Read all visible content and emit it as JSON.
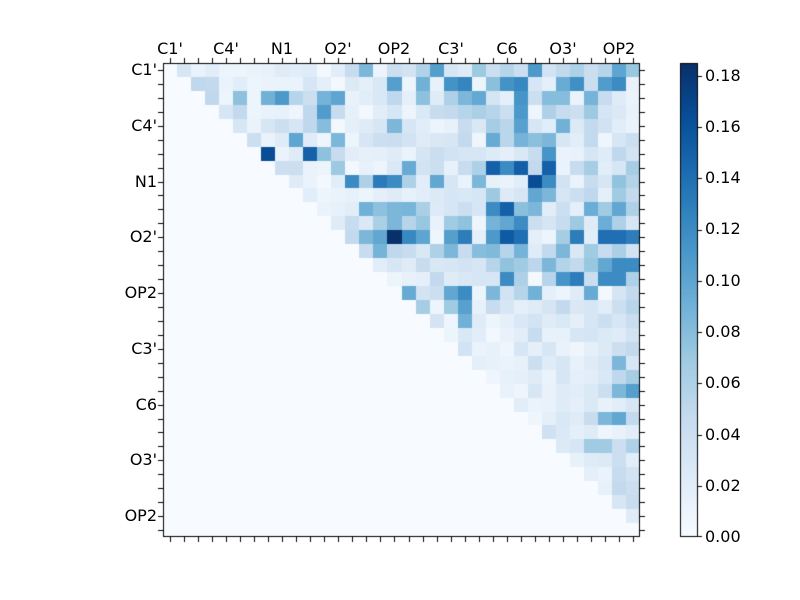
{
  "figure": {
    "background": "#ffffff"
  },
  "chart_data": {
    "type": "heatmap",
    "title": "",
    "xlabel": "",
    "ylabel": "",
    "colormap": "Blues",
    "vmin": 0.0,
    "vmax": 0.185,
    "grid_size": 34,
    "grid": "off",
    "shape": "upper-triangular",
    "tick_label_every_cells": 4,
    "x_ticklabels": [
      "C1'",
      "C4'",
      "N1",
      "O2'",
      "OP2",
      "C3'",
      "C6",
      "O3'",
      "OP2"
    ],
    "y_ticklabels": [
      "C1'",
      "C4'",
      "N1",
      "O2'",
      "OP2",
      "C3'",
      "C6",
      "O3'",
      "OP2"
    ],
    "colorbar": {
      "position": "right",
      "ticklabels": [
        "0.00",
        "0.02",
        "0.04",
        "0.06",
        "0.08",
        "0.10",
        "0.12",
        "0.14",
        "0.16",
        "0.18"
      ],
      "tick_values": [
        0.0,
        0.02,
        0.04,
        0.06,
        0.08,
        0.1,
        0.12,
        0.14,
        0.16,
        0.18
      ]
    },
    "colormap_anchors": [
      {
        "t": 0.0,
        "color": "#f7fbff"
      },
      {
        "t": 0.125,
        "color": "#deebf7"
      },
      {
        "t": 0.25,
        "color": "#c6dbef"
      },
      {
        "t": 0.375,
        "color": "#9ecae1"
      },
      {
        "t": 0.5,
        "color": "#6baed6"
      },
      {
        "t": 0.625,
        "color": "#4292c6"
      },
      {
        "t": 0.75,
        "color": "#2171b5"
      },
      {
        "t": 0.875,
        "color": "#08519c"
      },
      {
        "t": 1.0,
        "color": "#08306b"
      }
    ],
    "matrix": [
      [
        0,
        0.03,
        0.012,
        0.02,
        0.01,
        0.01,
        0.012,
        0.015,
        0.022,
        0.02,
        0.022,
        0.004,
        0.02,
        0.045,
        0.085,
        0.01,
        0.04,
        0.035,
        0.058,
        0.105,
        0.03,
        0.022,
        0.07,
        0.04,
        0.055,
        0.04,
        0.11,
        0.035,
        0.048,
        0.06,
        0.042,
        0.055,
        0.1,
        0.072
      ],
      [
        0,
        0,
        0.05,
        0.048,
        0.012,
        0.02,
        0.01,
        0.012,
        0.012,
        0.012,
        0.03,
        0.018,
        0.005,
        0.025,
        0.018,
        0.028,
        0.105,
        0.01,
        0.09,
        0.015,
        0.115,
        0.125,
        0.01,
        0.078,
        0.115,
        0.123,
        0.03,
        0.018,
        0.094,
        0.117,
        0.042,
        0.107,
        0.12,
        0.013
      ],
      [
        0,
        0,
        0,
        0.05,
        0.01,
        0.077,
        0.01,
        0.09,
        0.11,
        0.055,
        0.04,
        0.088,
        0.1,
        0.013,
        0.02,
        0.027,
        0.05,
        0.018,
        0.077,
        0.022,
        0.06,
        0.085,
        0.097,
        0.032,
        0.017,
        0.113,
        0.04,
        0.08,
        0.08,
        0.012,
        0.088,
        0.045,
        0.022,
        0.012
      ],
      [
        0,
        0,
        0,
        0,
        0.03,
        0.048,
        0.01,
        0.013,
        0.015,
        0.008,
        0.05,
        0.107,
        0.045,
        0.016,
        0.005,
        0.02,
        0.03,
        0.01,
        0.026,
        0.045,
        0.048,
        0.055,
        0.062,
        0.055,
        0.04,
        0.11,
        0.008,
        0.06,
        0.045,
        0.04,
        0.07,
        0.032,
        0.026,
        0.013
      ],
      [
        0,
        0,
        0,
        0,
        0,
        0.03,
        0.012,
        0.03,
        0.04,
        0.03,
        0.05,
        0.08,
        0.005,
        0.018,
        0.022,
        0.03,
        0.085,
        0.03,
        0.02,
        0.01,
        0.015,
        0.045,
        0.027,
        0.065,
        0.053,
        0.103,
        0.03,
        0.02,
        0.09,
        0.025,
        0.048,
        0.036,
        0.02,
        0.012
      ],
      [
        0,
        0,
        0,
        0,
        0,
        0,
        0.04,
        0.012,
        0.022,
        0.1,
        0.022,
        0.008,
        0.085,
        0.01,
        0.03,
        0.04,
        0.042,
        0.035,
        0.022,
        0.027,
        0.03,
        0.048,
        0.008,
        0.095,
        0.053,
        0.088,
        0.078,
        0.085,
        0.03,
        0.02,
        0.048,
        0.008,
        0.03,
        0.04
      ],
      [
        0,
        0,
        0,
        0,
        0,
        0,
        0,
        0.165,
        0.012,
        0.022,
        0.15,
        0.077,
        0.045,
        0.02,
        0.016,
        0.018,
        0.022,
        0.012,
        0.032,
        0.042,
        0.035,
        0.03,
        0.03,
        0.023,
        0.017,
        0.027,
        0.045,
        0.113,
        0.012,
        0.013,
        0.03,
        0.022,
        0.05,
        0.035
      ],
      [
        0,
        0,
        0,
        0,
        0,
        0,
        0,
        0,
        0.04,
        0.04,
        0.012,
        0.01,
        0.07,
        0.004,
        0.015,
        0.01,
        0.026,
        0.095,
        0.035,
        0.04,
        0.015,
        0.045,
        0.06,
        0.15,
        0.12,
        0.152,
        0.048,
        0.15,
        0.012,
        0.045,
        0.065,
        0.02,
        0.03,
        0.065
      ],
      [
        0,
        0,
        0,
        0,
        0,
        0,
        0,
        0,
        0,
        0.022,
        0.012,
        0.004,
        0.02,
        0.12,
        0.06,
        0.132,
        0.12,
        0.06,
        0.02,
        0.098,
        0.03,
        0.012,
        0.085,
        0.015,
        0.012,
        0.02,
        0.165,
        0.12,
        0.035,
        0.012,
        0.045,
        0.03,
        0.075,
        0.057
      ],
      [
        0,
        0,
        0,
        0,
        0,
        0,
        0,
        0,
        0,
        0,
        0.02,
        0.01,
        0.012,
        0.015,
        0.01,
        0.018,
        0.022,
        0.015,
        0.02,
        0.025,
        0.03,
        0.028,
        0.03,
        0.07,
        0.023,
        0.03,
        0.098,
        0.085,
        0.03,
        0.04,
        0.05,
        0.018,
        0.068,
        0.048
      ],
      [
        0,
        0,
        0,
        0,
        0,
        0,
        0,
        0,
        0,
        0,
        0,
        0.012,
        0.015,
        0.02,
        0.09,
        0.077,
        0.085,
        0.087,
        0.062,
        0.024,
        0.03,
        0.04,
        0.03,
        0.12,
        0.15,
        0.078,
        0.085,
        0.02,
        0.04,
        0.018,
        0.093,
        0.068,
        0.098,
        0.06
      ],
      [
        0,
        0,
        0,
        0,
        0,
        0,
        0,
        0,
        0,
        0,
        0,
        0,
        0.022,
        0.045,
        0.026,
        0.062,
        0.085,
        0.055,
        0.072,
        0.013,
        0.068,
        0.076,
        0.008,
        0.088,
        0.098,
        0.12,
        0.04,
        0.032,
        0.045,
        0.07,
        0.022,
        0.093,
        0.06,
        0.03
      ],
      [
        0,
        0,
        0,
        0,
        0,
        0,
        0,
        0,
        0,
        0,
        0,
        0,
        0,
        0.048,
        0.085,
        0.098,
        0.185,
        0.122,
        0.1,
        0.008,
        0.105,
        0.13,
        0.018,
        0.11,
        0.155,
        0.14,
        0.018,
        0.01,
        0.065,
        0.13,
        0.02,
        0.14,
        0.14,
        0.13
      ],
      [
        0,
        0,
        0,
        0,
        0,
        0,
        0,
        0,
        0,
        0,
        0,
        0,
        0,
        0,
        0.045,
        0.088,
        0.05,
        0.045,
        0.028,
        0.06,
        0.085,
        0.045,
        0.08,
        0.083,
        0.055,
        0.088,
        0.022,
        0.048,
        0.085,
        0.027,
        0.068,
        0.045,
        0.062,
        0.035
      ],
      [
        0,
        0,
        0,
        0,
        0,
        0,
        0,
        0,
        0,
        0,
        0,
        0,
        0,
        0,
        0,
        0.02,
        0.03,
        0.022,
        0.045,
        0.028,
        0.03,
        0.035,
        0.03,
        0.055,
        0.075,
        0.068,
        0.052,
        0.085,
        0.057,
        0.048,
        0.072,
        0.098,
        0.12,
        0.12
      ],
      [
        0,
        0,
        0,
        0,
        0,
        0,
        0,
        0,
        0,
        0,
        0,
        0,
        0,
        0,
        0,
        0,
        0.01,
        0.015,
        0.018,
        0.048,
        0.022,
        0.028,
        0.03,
        0.03,
        0.12,
        0.06,
        0.004,
        0.055,
        0.113,
        0.13,
        0.042,
        0.12,
        0.12,
        0.06
      ],
      [
        0,
        0,
        0,
        0,
        0,
        0,
        0,
        0,
        0,
        0,
        0,
        0,
        0,
        0,
        0,
        0,
        0,
        0.095,
        0.035,
        0.04,
        0.098,
        0.12,
        0.01,
        0.085,
        0.035,
        0.055,
        0.09,
        0.017,
        0.01,
        0.022,
        0.095,
        0.005,
        0.032,
        0.048
      ],
      [
        0,
        0,
        0,
        0,
        0,
        0,
        0,
        0,
        0,
        0,
        0,
        0,
        0,
        0,
        0,
        0,
        0,
        0,
        0.065,
        0.01,
        0.068,
        0.103,
        0.015,
        0.045,
        0.03,
        0.018,
        0.022,
        0.032,
        0.048,
        0.027,
        0.03,
        0.02,
        0.04,
        0.055
      ],
      [
        0,
        0,
        0,
        0,
        0,
        0,
        0,
        0,
        0,
        0,
        0,
        0,
        0,
        0,
        0,
        0,
        0,
        0,
        0,
        0.033,
        0.008,
        0.09,
        0.022,
        0.01,
        0.018,
        0.027,
        0.035,
        0.022,
        0.028,
        0.018,
        0.03,
        0.04,
        0.03,
        0.043
      ],
      [
        0,
        0,
        0,
        0,
        0,
        0,
        0,
        0,
        0,
        0,
        0,
        0,
        0,
        0,
        0,
        0,
        0,
        0,
        0,
        0,
        0.01,
        0.028,
        0.02,
        0.005,
        0.013,
        0.02,
        0.045,
        0.015,
        0.015,
        0.03,
        0.032,
        0.025,
        0.022,
        0.035
      ],
      [
        0,
        0,
        0,
        0,
        0,
        0,
        0,
        0,
        0,
        0,
        0,
        0,
        0,
        0,
        0,
        0,
        0,
        0,
        0,
        0,
        0,
        0.035,
        0.012,
        0.015,
        0.008,
        0.03,
        0.018,
        0.03,
        0.013,
        0.008,
        0.018,
        0.025,
        0.04,
        0.048
      ],
      [
        0,
        0,
        0,
        0,
        0,
        0,
        0,
        0,
        0,
        0,
        0,
        0,
        0,
        0,
        0,
        0,
        0,
        0,
        0,
        0,
        0,
        0,
        0.018,
        0.015,
        0.012,
        0.015,
        0.04,
        0.022,
        0.03,
        0.015,
        0.022,
        0.03,
        0.085,
        0.03
      ],
      [
        0,
        0,
        0,
        0,
        0,
        0,
        0,
        0,
        0,
        0,
        0,
        0,
        0,
        0,
        0,
        0,
        0,
        0,
        0,
        0,
        0,
        0,
        0,
        0.008,
        0.015,
        0.018,
        0.022,
        0.012,
        0.03,
        0.018,
        0.02,
        0.028,
        0.05,
        0.065
      ],
      [
        0,
        0,
        0,
        0,
        0,
        0,
        0,
        0,
        0,
        0,
        0,
        0,
        0,
        0,
        0,
        0,
        0,
        0,
        0,
        0,
        0,
        0,
        0,
        0,
        0.013,
        0.008,
        0.03,
        0.013,
        0.022,
        0.02,
        0.026,
        0.04,
        0.085,
        0.105
      ],
      [
        0,
        0,
        0,
        0,
        0,
        0,
        0,
        0,
        0,
        0,
        0,
        0,
        0,
        0,
        0,
        0,
        0,
        0,
        0,
        0,
        0,
        0,
        0,
        0,
        0,
        0.02,
        0.012,
        0.013,
        0.022,
        0.018,
        0.026,
        0.015,
        0.02,
        0.03
      ],
      [
        0,
        0,
        0,
        0,
        0,
        0,
        0,
        0,
        0,
        0,
        0,
        0,
        0,
        0,
        0,
        0,
        0,
        0,
        0,
        0,
        0,
        0,
        0,
        0,
        0,
        0,
        0.008,
        0.018,
        0.028,
        0.022,
        0.045,
        0.085,
        0.098,
        0.048
      ],
      [
        0,
        0,
        0,
        0,
        0,
        0,
        0,
        0,
        0,
        0,
        0,
        0,
        0,
        0,
        0,
        0,
        0,
        0,
        0,
        0,
        0,
        0,
        0,
        0,
        0,
        0,
        0,
        0.038,
        0.026,
        0.018,
        0.022,
        0.008,
        0.013,
        0.02
      ],
      [
        0,
        0,
        0,
        0,
        0,
        0,
        0,
        0,
        0,
        0,
        0,
        0,
        0,
        0,
        0,
        0,
        0,
        0,
        0,
        0,
        0,
        0,
        0,
        0,
        0,
        0,
        0,
        0,
        0.025,
        0.03,
        0.068,
        0.068,
        0.04,
        0.06
      ],
      [
        0,
        0,
        0,
        0,
        0,
        0,
        0,
        0,
        0,
        0,
        0,
        0,
        0,
        0,
        0,
        0,
        0,
        0,
        0,
        0,
        0,
        0,
        0,
        0,
        0,
        0,
        0,
        0,
        0,
        0.015,
        0.022,
        0.025,
        0.04,
        0.02
      ],
      [
        0,
        0,
        0,
        0,
        0,
        0,
        0,
        0,
        0,
        0,
        0,
        0,
        0,
        0,
        0,
        0,
        0,
        0,
        0,
        0,
        0,
        0,
        0,
        0,
        0,
        0,
        0,
        0,
        0,
        0,
        0.018,
        0.012,
        0.045,
        0.035
      ],
      [
        0,
        0,
        0,
        0,
        0,
        0,
        0,
        0,
        0,
        0,
        0,
        0,
        0,
        0,
        0,
        0,
        0,
        0,
        0,
        0,
        0,
        0,
        0,
        0,
        0,
        0,
        0,
        0,
        0,
        0,
        0,
        0.015,
        0.048,
        0.04
      ],
      [
        0,
        0,
        0,
        0,
        0,
        0,
        0,
        0,
        0,
        0,
        0,
        0,
        0,
        0,
        0,
        0,
        0,
        0,
        0,
        0,
        0,
        0,
        0,
        0,
        0,
        0,
        0,
        0,
        0,
        0,
        0,
        0,
        0.03,
        0.045
      ],
      [
        0,
        0,
        0,
        0,
        0,
        0,
        0,
        0,
        0,
        0,
        0,
        0,
        0,
        0,
        0,
        0,
        0,
        0,
        0,
        0,
        0,
        0,
        0,
        0,
        0,
        0,
        0,
        0,
        0,
        0,
        0,
        0,
        0,
        0.022
      ],
      [
        0,
        0,
        0,
        0,
        0,
        0,
        0,
        0,
        0,
        0,
        0,
        0,
        0,
        0,
        0,
        0,
        0,
        0,
        0,
        0,
        0,
        0,
        0,
        0,
        0,
        0,
        0,
        0,
        0,
        0,
        0,
        0,
        0,
        0
      ]
    ]
  }
}
